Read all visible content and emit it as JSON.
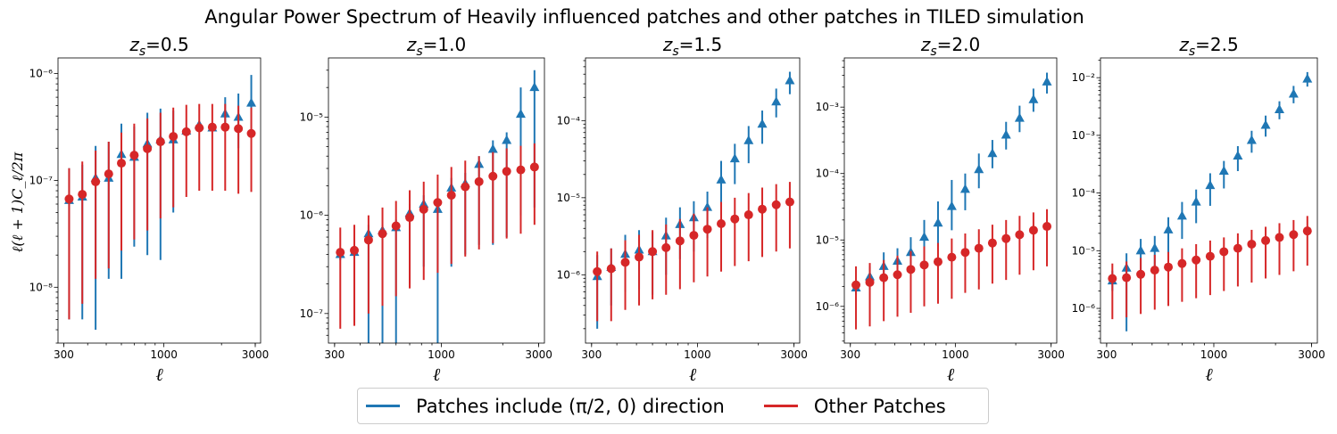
{
  "suptitle": "Angular Power Spectrum of Heavily influenced patches and other patches in TILED simulation",
  "ylabel": "ℓ(ℓ + 1)C_ℓ/2π",
  "xlabel": "ℓ",
  "colors": {
    "blue": "#1f77b4",
    "red": "#d62728"
  },
  "legend": [
    {
      "label": "Patches include (π/2, 0) direction",
      "color": "#1f77b4"
    },
    {
      "label": "Other Patches",
      "color": "#d62728"
    }
  ],
  "chart_data": [
    {
      "type": "scatter",
      "title": "z_s=0.5",
      "xscale": "log",
      "yscale": "log",
      "xlim": [
        280,
        3200
      ],
      "ylim": [
        3e-09,
        1.4e-06
      ],
      "xticks": [
        300,
        1000,
        3000
      ],
      "xticklabels": [
        "300",
        "1000",
        "3000"
      ],
      "yticks": [
        1e-08,
        1e-07,
        1e-06
      ],
      "yticklabels": [
        "10⁻⁸",
        "10⁻⁷",
        "10⁻⁶"
      ],
      "x": [
        320,
        375,
        440,
        515,
        600,
        700,
        820,
        960,
        1120,
        1310,
        1530,
        1790,
        2090,
        2450,
        2860
      ],
      "series": [
        {
          "name": "Patches include (π/2, 0) direction",
          "color": "#1f77b4",
          "marker": "triangle",
          "y": [
            6.5e-08,
            7e-08,
            1.05e-07,
            1.05e-07,
            1.75e-07,
            1.65e-07,
            2.2e-07,
            2.4e-07,
            2.4e-07,
            2.9e-07,
            3.3e-07,
            3.1e-07,
            4.2e-07,
            3.9e-07,
            5.3e-07
          ],
          "lo": [
            5e-09,
            5e-09,
            4e-09,
            1.2e-08,
            1.2e-08,
            2.4e-08,
            2e-08,
            1.8e-08,
            5e-08,
            2.8e-07,
            3e-07,
            3e-07,
            3e-07,
            2e-07,
            3e-07
          ],
          "hi": [
            1.3e-07,
            1.4e-07,
            2.1e-07,
            2.3e-07,
            3.4e-07,
            3.2e-07,
            4.3e-07,
            4.7e-07,
            4.5e-07,
            3.1e-07,
            3.5e-07,
            3.3e-07,
            6e-07,
            6.5e-07,
            9.7e-07
          ]
        },
        {
          "name": "Other Patches",
          "color": "#d62728",
          "marker": "circle",
          "y": [
            6.7e-08,
            7.4e-08,
            9.7e-08,
            1.15e-07,
            1.45e-07,
            1.72e-07,
            1.98e-07,
            2.3e-07,
            2.58e-07,
            2.85e-07,
            3.1e-07,
            3.15e-07,
            3.15e-07,
            3.05e-07,
            2.75e-07
          ],
          "lo": [
            5e-09,
            7e-09,
            1.2e-08,
            1.5e-08,
            2.2e-08,
            2.8e-08,
            3.4e-08,
            4.4e-08,
            5.6e-08,
            7e-08,
            8e-08,
            8e-08,
            8e-08,
            7.5e-08,
            7.8e-08
          ],
          "hi": [
            1.3e-07,
            1.5e-07,
            1.9e-07,
            2.3e-07,
            2.8e-07,
            3.4e-07,
            3.8e-07,
            4.3e-07,
            4.8e-07,
            5.1e-07,
            5.2e-07,
            5.2e-07,
            5.2e-07,
            5e-07,
            4.8e-07
          ]
        }
      ]
    },
    {
      "type": "scatter",
      "title": "z_s=1.0",
      "xscale": "log",
      "yscale": "log",
      "xlim": [
        280,
        3200
      ],
      "ylim": [
        5e-08,
        4e-05
      ],
      "xticks": [
        300,
        1000,
        3000
      ],
      "xticklabels": [
        "300",
        "1000",
        "3000"
      ],
      "yticks": [
        1e-07,
        1e-06,
        1e-05
      ],
      "yticklabels": [
        "10⁻⁷",
        "10⁻⁶",
        "10⁻⁵"
      ],
      "x": [
        320,
        375,
        440,
        515,
        600,
        700,
        820,
        960,
        1120,
        1310,
        1530,
        1790,
        2090,
        2450,
        2860
      ],
      "series": [
        {
          "name": "Patches include (π/2, 0) direction",
          "color": "#1f77b4",
          "marker": "triangle",
          "y": [
            4e-07,
            4.2e-07,
            6.5e-07,
            7e-07,
            7.5e-07,
            1.05e-06,
            1.3e-06,
            1.15e-06,
            1.9e-06,
            2.1e-06,
            3.3e-06,
            4.7e-06,
            5.8e-06,
            1.07e-05,
            2e-05
          ],
          "lo": [
            3.5e-07,
            8e-08,
            5e-08,
            5e-08,
            5e-08,
            2e-07,
            3e-07,
            5e-08,
            3e-07,
            4e-07,
            5e-07,
            5e-07,
            6e-07,
            1e-06,
            1.2e-06
          ],
          "hi": [
            4.5e-07,
            5e-07,
            8e-07,
            8e-07,
            9e-07,
            1.3e-06,
            1.6e-06,
            1.5e-06,
            2.4e-06,
            2.7e-06,
            4e-06,
            5.8e-06,
            7e-06,
            2e-05,
            3e-05
          ]
        },
        {
          "name": "Other Patches",
          "color": "#d62728",
          "marker": "circle",
          "y": [
            4.2e-07,
            4.4e-07,
            5.6e-07,
            6.5e-07,
            7.8e-07,
            9.5e-07,
            1.15e-06,
            1.35e-06,
            1.6e-06,
            1.95e-06,
            2.2e-06,
            2.5e-06,
            2.8e-06,
            2.9e-06,
            3.1e-06
          ],
          "lo": [
            7e-08,
            7.5e-08,
            1e-07,
            1.2e-07,
            1.5e-07,
            1.8e-07,
            2.2e-07,
            2.6e-07,
            3.2e-07,
            3.8e-07,
            4.5e-07,
            5.2e-07,
            5.8e-07,
            6.5e-07,
            8e-07
          ],
          "hi": [
            7.5e-07,
            8e-07,
            1e-06,
            1.2e-06,
            1.4e-06,
            1.8e-06,
            2.2e-06,
            2.6e-06,
            3.1e-06,
            3.6e-06,
            4e-06,
            4.4e-06,
            4.8e-06,
            5.1e-06,
            5.4e-06
          ]
        }
      ]
    },
    {
      "type": "scatter",
      "title": "z_s=1.5",
      "xscale": "log",
      "yscale": "log",
      "xlim": [
        280,
        3200
      ],
      "ylim": [
        1.3e-07,
        0.00065
      ],
      "xticks": [
        300,
        1000,
        3000
      ],
      "xticklabels": [
        "300",
        "1000",
        "3000"
      ],
      "yticks": [
        1e-06,
        1e-05,
        0.0001
      ],
      "yticklabels": [
        "10⁻⁶",
        "10⁻⁵",
        "10⁻⁴"
      ],
      "x": [
        320,
        375,
        440,
        515,
        600,
        700,
        820,
        960,
        1120,
        1310,
        1530,
        1790,
        2090,
        2450,
        2860
      ],
      "series": [
        {
          "name": "Patches include (π/2, 0) direction",
          "color": "#1f77b4",
          "marker": "triangle",
          "y": [
            9.5e-07,
            1.25e-06,
            1.85e-06,
            2.1e-06,
            2e-06,
            3.2e-06,
            4.5e-06,
            5.5e-06,
            7.5e-06,
            1.7e-05,
            3.2e-05,
            5.5e-05,
            9e-05,
            0.000175,
            0.00033
          ],
          "lo": [
            2e-07,
            4e-07,
            6e-07,
            6.5e-07,
            5.5e-07,
            1e-06,
            1.6e-06,
            2e-06,
            3e-06,
            6e-06,
            1.5e-05,
            2.8e-05,
            5e-05,
            0.00011,
            0.00022
          ],
          "hi": [
            1.8e-06,
            2.2e-06,
            3.3e-06,
            3.8e-06,
            3.6e-06,
            5.5e-06,
            7.5e-06,
            9e-06,
            1.2e-05,
            3e-05,
            5e-05,
            8.5e-05,
            0.000135,
            0.00026,
            0.00043
          ]
        },
        {
          "name": "Other Patches",
          "color": "#d62728",
          "marker": "circle",
          "y": [
            1.1e-06,
            1.2e-06,
            1.45e-06,
            1.7e-06,
            2e-06,
            2.25e-06,
            2.75e-06,
            3.25e-06,
            3.9e-06,
            4.6e-06,
            5.3e-06,
            6e-06,
            7.1e-06,
            8.1e-06,
            8.8e-06
          ],
          "lo": [
            2.5e-07,
            2.5e-07,
            3.5e-07,
            4e-07,
            4.8e-07,
            5.5e-07,
            6.5e-07,
            8e-07,
            9.5e-07,
            1.1e-06,
            1.3e-06,
            1.5e-06,
            1.7e-06,
            2e-06,
            2.2e-06
          ],
          "hi": [
            2e-06,
            2.2e-06,
            2.8e-06,
            3.3e-06,
            3.8e-06,
            4.5e-06,
            5.3e-06,
            6.2e-06,
            7.5e-06,
            8.8e-06,
            1e-05,
            1.15e-05,
            1.35e-05,
            1.5e-05,
            1.6e-05
          ]
        }
      ]
    },
    {
      "type": "scatter",
      "title": "z_s=2.0",
      "xscale": "log",
      "yscale": "log",
      "xlim": [
        280,
        3200
      ],
      "ylim": [
        2.8e-07,
        0.0055
      ],
      "xticks": [
        300,
        1000,
        3000
      ],
      "xticklabels": [
        "300",
        "1000",
        "3000"
      ],
      "yticks": [
        1e-06,
        1e-05,
        0.0001,
        0.001
      ],
      "yticklabels": [
        "10⁻⁶",
        "10⁻⁵",
        "10⁻⁴",
        "10⁻³"
      ],
      "x": [
        320,
        375,
        440,
        515,
        600,
        700,
        820,
        960,
        1120,
        1310,
        1530,
        1790,
        2090,
        2450,
        2860
      ],
      "series": [
        {
          "name": "Patches include (π/2, 0) direction",
          "color": "#1f77b4",
          "marker": "triangle",
          "y": [
            1.9e-06,
            2.8e-06,
            4e-06,
            4.8e-06,
            6.5e-06,
            1.1e-05,
            1.8e-05,
            3.2e-05,
            5.8e-05,
            0.000115,
            0.0002,
            0.00038,
            0.00068,
            0.0013,
            0.0024
          ],
          "lo": [
            1.5e-06,
            1.8e-06,
            2.2e-06,
            2.6e-06,
            3.2e-06,
            5e-06,
            8e-06,
            1.4e-05,
            2.8e-05,
            6e-05,
            0.00012,
            0.00023,
            0.00042,
            0.00085,
            0.0016
          ],
          "hi": [
            2.5e-06,
            4e-06,
            6.5e-06,
            7.5e-06,
            1.1e-05,
            2e-05,
            3.8e-05,
            8e-05,
            0.0001,
            0.0002,
            0.00032,
            0.0006,
            0.00105,
            0.0019,
            0.0033
          ]
        },
        {
          "name": "Other Patches",
          "color": "#d62728",
          "marker": "circle",
          "y": [
            2.1e-06,
            2.3e-06,
            2.7e-06,
            3e-06,
            3.6e-06,
            4.2e-06,
            4.7e-06,
            5.5e-06,
            6.5e-06,
            7.5e-06,
            9e-06,
            1.05e-05,
            1.2e-05,
            1.4e-05,
            1.6e-05
          ],
          "lo": [
            4.5e-07,
            5e-07,
            6e-07,
            7e-07,
            8e-07,
            1e-06,
            1.1e-06,
            1.3e-06,
            1.6e-06,
            1.8e-06,
            2.2e-06,
            2.5e-06,
            3e-06,
            3.5e-06,
            4e-06
          ],
          "hi": [
            4e-06,
            4.5e-06,
            5e-06,
            5.8e-06,
            6.8e-06,
            8e-06,
            9e-06,
            1.05e-05,
            1.25e-05,
            1.45e-05,
            1.7e-05,
            2e-05,
            2.3e-05,
            2.6e-05,
            2.9e-05
          ]
        }
      ]
    },
    {
      "type": "scatter",
      "title": "z_s=2.5",
      "xscale": "log",
      "yscale": "log",
      "xlim": [
        280,
        3200
      ],
      "ylim": [
        2.5e-07,
        0.022
      ],
      "xticks": [
        300,
        1000,
        3000
      ],
      "xticklabels": [
        "300",
        "1000",
        "3000"
      ],
      "yticks": [
        1e-06,
        1e-05,
        0.0001,
        0.001,
        0.01
      ],
      "yticklabels": [
        "10⁻⁶",
        "10⁻⁵",
        "10⁻⁴",
        "10⁻³",
        "10⁻²"
      ],
      "x": [
        320,
        375,
        440,
        515,
        600,
        700,
        820,
        960,
        1120,
        1310,
        1530,
        1790,
        2090,
        2450,
        2860
      ],
      "series": [
        {
          "name": "Patches include (π/2, 0) direction",
          "color": "#1f77b4",
          "marker": "triangle",
          "y": [
            3e-06,
            5e-06,
            1e-05,
            1.1e-05,
            2.3e-05,
            4e-05,
            7e-05,
            0.000135,
            0.00024,
            0.00044,
            0.00082,
            0.0015,
            0.0028,
            0.0052,
            0.0095
          ],
          "lo": [
            2e-06,
            4e-07,
            4e-06,
            4.5e-06,
            9e-06,
            1.6e-05,
            3e-05,
            6e-05,
            0.00012,
            0.00024,
            0.0005,
            0.00095,
            0.0019,
            0.0036,
            0.007
          ],
          "hi": [
            4.5e-06,
            9e-06,
            1.6e-05,
            1.8e-05,
            3.8e-05,
            7e-05,
            0.000115,
            0.00022,
            0.00036,
            0.00065,
            0.0012,
            0.0022,
            0.0039,
            0.0072,
            0.0125
          ]
        },
        {
          "name": "Other Patches",
          "color": "#d62728",
          "marker": "circle",
          "y": [
            3.3e-06,
            3.4e-06,
            3.9e-06,
            4.6e-06,
            5.2e-06,
            6e-06,
            6.9e-06,
            8e-06,
            9.6e-06,
            1.1e-05,
            1.3e-05,
            1.5e-05,
            1.7e-05,
            1.9e-05,
            2.2e-05
          ],
          "lo": [
            6.5e-07,
            7e-07,
            8e-07,
            9.5e-07,
            1.1e-06,
            1.3e-06,
            1.5e-06,
            1.7e-06,
            2e-06,
            2.4e-06,
            2.8e-06,
            3.3e-06,
            3.8e-06,
            4.4e-06,
            5.5e-06
          ],
          "hi": [
            6e-06,
            6.5e-06,
            7.5e-06,
            8.5e-06,
            9.5e-06,
            1.1e-05,
            1.3e-05,
            1.5e-05,
            1.7e-05,
            2e-05,
            2.3e-05,
            2.6e-05,
            3e-05,
            3.4e-05,
            4e-05
          ]
        }
      ]
    }
  ]
}
